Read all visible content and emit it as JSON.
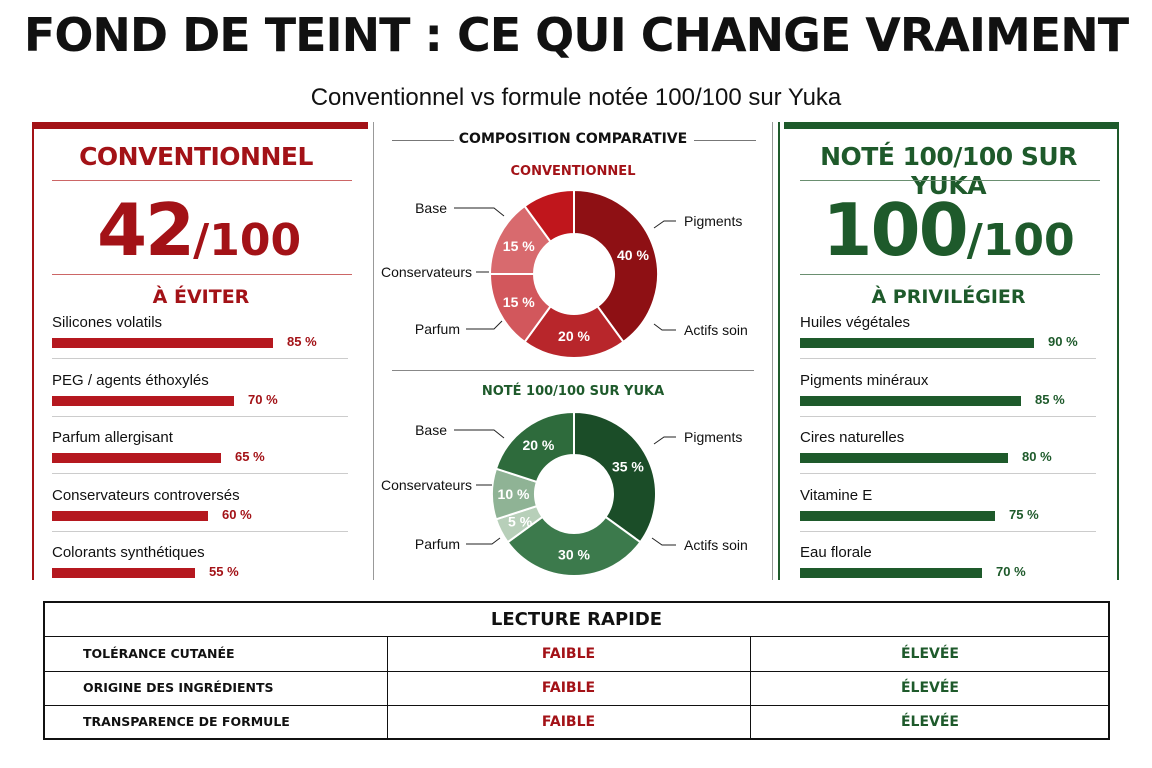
{
  "title": "FOND DE TEINT : CE QUI CHANGE VRAIMENT",
  "subtitle": "Conventionnel vs formule notée 100/100 sur Yuka",
  "colors": {
    "red": "#a31217",
    "green": "#1e5a2b"
  },
  "left": {
    "heading": "CONVENTIONNEL",
    "score_big": "42",
    "score_small": "/100",
    "subhead": "À ÉVITER",
    "items": [
      {
        "label": "Silicones volatils",
        "value": 85,
        "pct": "85 %"
      },
      {
        "label": "PEG / agents éthoxylés",
        "value": 70,
        "pct": "70 %"
      },
      {
        "label": "Parfum allergisant",
        "value": 65,
        "pct": "65 %"
      },
      {
        "label": "Conservateurs controversés",
        "value": 60,
        "pct": "60 %"
      },
      {
        "label": "Colorants synthétiques",
        "value": 55,
        "pct": "55 %"
      }
    ]
  },
  "right": {
    "heading": "NOTÉ 100/100 SUR YUKA",
    "score_big": "100",
    "score_small": "/100",
    "subhead": "À PRIVILÉGIER",
    "items": [
      {
        "label": "Huiles végétales",
        "value": 90,
        "pct": "90 %"
      },
      {
        "label": "Pigments minéraux",
        "value": 85,
        "pct": "85 %"
      },
      {
        "label": "Cires naturelles",
        "value": 80,
        "pct": "80 %"
      },
      {
        "label": "Vitamine E",
        "value": 75,
        "pct": "75 %"
      },
      {
        "label": "Eau florale",
        "value": 70,
        "pct": "70 %"
      }
    ]
  },
  "center": {
    "title": "COMPOSITION COMPARATIVE"
  },
  "chart_data": [
    {
      "type": "bar",
      "title": "À ÉVITER",
      "categories": [
        "Silicones volatils",
        "PEG / agents éthoxylés",
        "Parfum allergisant",
        "Conservateurs controversés",
        "Colorants synthétiques"
      ],
      "values": [
        85,
        70,
        65,
        60,
        55
      ],
      "xlim": [
        0,
        100
      ]
    },
    {
      "type": "pie",
      "title": "CONVENTIONNEL",
      "categories": [
        "Pigments",
        "Actifs soin",
        "Parfum",
        "Conservateurs",
        "Base"
      ],
      "values": [
        40,
        20,
        15,
        15,
        10
      ],
      "labels": [
        "40 %",
        "20 %",
        "15 %",
        "15 %",
        ""
      ],
      "colors": [
        "#8e1014",
        "#b8262b",
        "#d2575c",
        "#d86a6e",
        "#c0161c"
      ]
    },
    {
      "type": "pie",
      "title": "NOTÉ 100/100 SUR YUKA",
      "categories": [
        "Pigments",
        "Actifs soin",
        "Parfum",
        "Conservateurs",
        "Base"
      ],
      "values": [
        35,
        30,
        5,
        10,
        20
      ],
      "labels": [
        "35 %",
        "30 %",
        "5 %",
        "10 %",
        "20 %"
      ],
      "colors": [
        "#1b4d28",
        "#3c7a4c",
        "#b7cfb9",
        "#8fb395",
        "#2e6b3c"
      ]
    },
    {
      "type": "bar",
      "title": "À PRIVILÉGIER",
      "categories": [
        "Huiles végétales",
        "Pigments minéraux",
        "Cires naturelles",
        "Vitamine E",
        "Eau florale"
      ],
      "values": [
        90,
        85,
        80,
        75,
        70
      ],
      "xlim": [
        0,
        100
      ]
    }
  ],
  "quick": {
    "title": "LECTURE RAPIDE",
    "rows": [
      {
        "label": "TOLÉRANCE CUTANÉE",
        "conv": "FAIBLE",
        "yuka": "ÉLEVÉE"
      },
      {
        "label": "ORIGINE DES INGRÉDIENTS",
        "conv": "FAIBLE",
        "yuka": "ÉLEVÉE"
      },
      {
        "label": "TRANSPARENCE DE FORMULE",
        "conv": "FAIBLE",
        "yuka": "ÉLEVÉE"
      }
    ]
  }
}
